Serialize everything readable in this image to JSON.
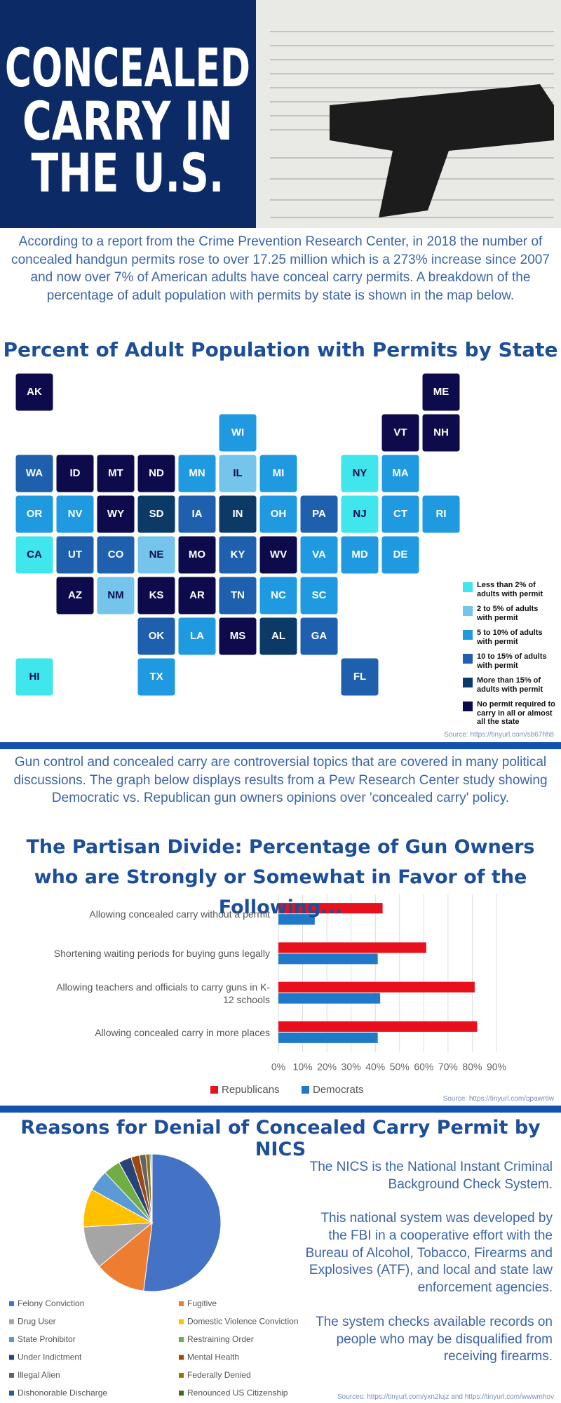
{
  "header": {
    "title_lines": [
      "CONCEALED",
      "CARRY IN",
      "THE U.S."
    ]
  },
  "intro": "According to a report from the Crime Prevention Research Center, in 2018 the number of concealed handgun permits rose to over 17.25 million which is a 273% increase since 2007 and now over 7% of American adults have conceal carry permits. A breakdown of the percentage of adult population with permits by state is shown in the map below.",
  "map": {
    "title": "Percent of Adult Population with Permits by State",
    "legend": [
      {
        "label": "Less than 2% of adults with permit",
        "color": "#3fe6ec"
      },
      {
        "label": "2 to 5% of adults with permit",
        "color": "#74c4ec"
      },
      {
        "label": "5 to 10% of adults with permit",
        "color": "#1f9ae0"
      },
      {
        "label": "10 to 15% of adults with permit",
        "color": "#1e5fae"
      },
      {
        "label": "More than 15% of adults with permit",
        "color": "#0c3a66"
      },
      {
        "label": "No permit required to carry in all or almost all the state",
        "color": "#0e0b4d"
      }
    ],
    "states": [
      {
        "label": "AK",
        "category": 5
      },
      {
        "label": "ME",
        "category": 5
      },
      {
        "label": "WI",
        "category": 2
      },
      {
        "label": "VT",
        "category": 5
      },
      {
        "label": "NH",
        "category": 5
      },
      {
        "label": "WA",
        "category": 3
      },
      {
        "label": "ID",
        "category": 5
      },
      {
        "label": "MT",
        "category": 5
      },
      {
        "label": "ND",
        "category": 5
      },
      {
        "label": "MN",
        "category": 2
      },
      {
        "label": "IL",
        "category": 1
      },
      {
        "label": "MI",
        "category": 2
      },
      {
        "label": "NY",
        "category": 0
      },
      {
        "label": "MA",
        "category": 2
      },
      {
        "label": "OR",
        "category": 2
      },
      {
        "label": "NV",
        "category": 2
      },
      {
        "label": "WY",
        "category": 5
      },
      {
        "label": "SD",
        "category": 4
      },
      {
        "label": "IA",
        "category": 3
      },
      {
        "label": "IN",
        "category": 4
      },
      {
        "label": "OH",
        "category": 2
      },
      {
        "label": "PA",
        "category": 3
      },
      {
        "label": "NJ",
        "category": 0
      },
      {
        "label": "CT",
        "category": 2
      },
      {
        "label": "RI",
        "category": 2
      },
      {
        "label": "CA",
        "category": 0
      },
      {
        "label": "UT",
        "category": 3
      },
      {
        "label": "CO",
        "category": 3
      },
      {
        "label": "NE",
        "category": 1
      },
      {
        "label": "MO",
        "category": 5
      },
      {
        "label": "KY",
        "category": 3
      },
      {
        "label": "WV",
        "category": 5
      },
      {
        "label": "VA",
        "category": 2
      },
      {
        "label": "MD",
        "category": 2
      },
      {
        "label": "DE",
        "category": 2
      },
      {
        "label": "AZ",
        "category": 5
      },
      {
        "label": "NM",
        "category": 1
      },
      {
        "label": "KS",
        "category": 5
      },
      {
        "label": "AR",
        "category": 5
      },
      {
        "label": "TN",
        "category": 3
      },
      {
        "label": "NC",
        "category": 2
      },
      {
        "label": "SC",
        "category": 2
      },
      {
        "label": "OK",
        "category": 3
      },
      {
        "label": "LA",
        "category": 2
      },
      {
        "label": "MS",
        "category": 5
      },
      {
        "label": "AL",
        "category": 4
      },
      {
        "label": "GA",
        "category": 3
      },
      {
        "label": "HI",
        "category": 0
      },
      {
        "label": "TX",
        "category": 2
      },
      {
        "label": "FL",
        "category": 3
      }
    ],
    "source": "Source: https://tinyurl.com/sb67hh8"
  },
  "paragraph2": "Gun control and concealed carry are controversial topics that are covered in many political discussions. The graph below displays results from a Pew Research Center study showing Democratic vs. Republican gun owners opinions over 'concealed carry' policy.",
  "chart_data": [
    {
      "type": "hbar",
      "title": "The Partisan Divide: Percentage of Gun Owners who are Strongly or Somewhat in Favor of the Following...",
      "categories": [
        "Allowing concealed carry without a permit",
        "Shortening waiting periods for buying guns legally",
        "Allowing teachers and officials to carry guns in K-12 schools",
        "Allowing concealed carry in more places"
      ],
      "series": [
        {
          "name": "Republicans",
          "color": "#e8101c",
          "values": [
            43,
            61,
            81,
            82
          ]
        },
        {
          "name": "Democrats",
          "color": "#1f78c8",
          "values": [
            15,
            41,
            42,
            41
          ]
        }
      ],
      "xlim": [
        0,
        90
      ],
      "xticks": [
        {
          "value": 0,
          "label": "0%"
        },
        {
          "value": 10,
          "label": "10%"
        },
        {
          "value": 20,
          "label": "20%"
        },
        {
          "value": 30,
          "label": "30%"
        },
        {
          "value": 40,
          "label": "40%"
        },
        {
          "value": 50,
          "label": "50%"
        },
        {
          "value": 60,
          "label": "60%"
        },
        {
          "value": 70,
          "label": "70%"
        },
        {
          "value": 80,
          "label": "80%"
        },
        {
          "value": 90,
          "label": "90%"
        }
      ],
      "grid": true,
      "source": "Source: https://tinyurl.com/qpawr6w"
    },
    {
      "type": "pie",
      "title": "Reasons for Denial of Concealed Carry Permit by NICS",
      "categories": [
        "Felony Conviction",
        "Fugitive",
        "Drug User",
        "Domestic Violence Conviction",
        "State Prohibitor",
        "Restraining Order",
        "Under Indictment",
        "Mental Health",
        "Illegal Alien",
        "Federally Denied",
        "Dishonorable Discharge",
        "Renounced US Citizenship"
      ],
      "values": [
        52,
        12,
        10,
        9,
        5,
        4,
        3,
        2,
        1.5,
        1,
        0.3,
        0.2
      ],
      "colors": [
        "#4472c4",
        "#ed7d31",
        "#a5a5a5",
        "#ffc000",
        "#5b9bd5",
        "#70ad47",
        "#264478",
        "#9e480e",
        "#636363",
        "#997300",
        "#255e91",
        "#43682b"
      ]
    }
  ],
  "nics_text": [
    "The NICS is the National Instant Criminal Background Check System.",
    "This national system was developed by the FBI in a cooperative effort with the Bureau of Alcohol, Tobacco, Firearms and Explosives (ATF), and local and state law enforcement agencies.",
    "The system checks available records on people who may be disqualified from receiving firearms."
  ],
  "sources": "Sources: https://tinyurl.com/yxn2lujz and https://tinyurl.com/wwwmhov"
}
